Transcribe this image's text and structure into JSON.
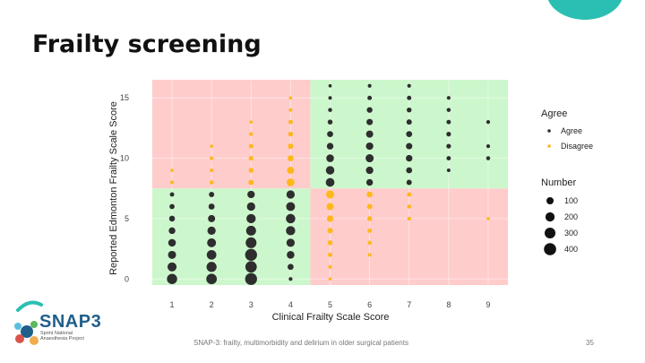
{
  "slide": {
    "title": "Frailty screening",
    "footer": "SNAP-3: frailty, multimorbidity and delirium in older surgical patients",
    "page_number": "35",
    "accent_color": "#2bbfb3",
    "logo": {
      "name": "SNAP3",
      "lines": [
        "Sprint National",
        "Anaesthesia Project"
      ]
    }
  },
  "chart_data": {
    "type": "scatter",
    "xlabel": "Clinical Frailty Scale Score",
    "ylabel": "Reported Edmonton Frailty Scale Score",
    "xlim": [
      0.5,
      9.5
    ],
    "ylim": [
      -0.5,
      16.5
    ],
    "xticks": [
      1,
      2,
      3,
      4,
      5,
      6,
      7,
      8,
      9
    ],
    "yticks": [
      0,
      5,
      10,
      15
    ],
    "grid": true,
    "legend_position": "right",
    "regions": [
      {
        "x": [
          0.5,
          4.5
        ],
        "y": [
          -0.5,
          7.5
        ],
        "agreement": "agree",
        "color": "#ccf7cc"
      },
      {
        "x": [
          0.5,
          4.5
        ],
        "y": [
          7.5,
          16.5
        ],
        "agreement": "disagree",
        "color": "#ffcccc"
      },
      {
        "x": [
          4.5,
          9.5
        ],
        "y": [
          -0.5,
          7.5
        ],
        "agreement": "disagree",
        "color": "#ffcccc"
      },
      {
        "x": [
          4.5,
          9.5
        ],
        "y": [
          7.5,
          16.5
        ],
        "agreement": "agree",
        "color": "#ccf7cc"
      }
    ],
    "color_legend": {
      "title": "Agree",
      "entries": [
        {
          "label": "Agree",
          "color": "#2e2e2e"
        },
        {
          "label": "Disagree",
          "color": "#ffb71a"
        }
      ]
    },
    "size_legend": {
      "title": "Number",
      "values": [
        100,
        200,
        300,
        400
      ]
    },
    "series": [
      {
        "name": "Agree",
        "color": "#2e2e2e",
        "points": [
          [
            1,
            0,
            260
          ],
          [
            1,
            1,
            190
          ],
          [
            1,
            2,
            140
          ],
          [
            1,
            3,
            120
          ],
          [
            1,
            4,
            80
          ],
          [
            1,
            5,
            55
          ],
          [
            1,
            6,
            35
          ],
          [
            1,
            7,
            20
          ],
          [
            2,
            0,
            280
          ],
          [
            2,
            1,
            250
          ],
          [
            2,
            2,
            220
          ],
          [
            2,
            3,
            180
          ],
          [
            2,
            4,
            150
          ],
          [
            2,
            5,
            100
          ],
          [
            2,
            6,
            60
          ],
          [
            2,
            7,
            40
          ],
          [
            3,
            0,
            380
          ],
          [
            3,
            1,
            340
          ],
          [
            3,
            2,
            380
          ],
          [
            3,
            3,
            300
          ],
          [
            3,
            4,
            240
          ],
          [
            3,
            5,
            200
          ],
          [
            3,
            6,
            150
          ],
          [
            3,
            7,
            110
          ],
          [
            4,
            0,
            10
          ],
          [
            4,
            1,
            60
          ],
          [
            4,
            2,
            120
          ],
          [
            4,
            3,
            150
          ],
          [
            4,
            4,
            200
          ],
          [
            4,
            5,
            210
          ],
          [
            4,
            6,
            180
          ],
          [
            4,
            7,
            150
          ],
          [
            5,
            8,
            170
          ],
          [
            5,
            9,
            160
          ],
          [
            5,
            10,
            120
          ],
          [
            5,
            11,
            80
          ],
          [
            5,
            12,
            60
          ],
          [
            5,
            13,
            30
          ],
          [
            5,
            14,
            15
          ],
          [
            5,
            15,
            8
          ],
          [
            5,
            16,
            5
          ],
          [
            6,
            8,
            80
          ],
          [
            6,
            9,
            110
          ],
          [
            6,
            10,
            140
          ],
          [
            6,
            11,
            110
          ],
          [
            6,
            12,
            100
          ],
          [
            6,
            13,
            70
          ],
          [
            6,
            14,
            50
          ],
          [
            6,
            15,
            20
          ],
          [
            6,
            16,
            10
          ],
          [
            7,
            8,
            40
          ],
          [
            7,
            9,
            60
          ],
          [
            7,
            10,
            80
          ],
          [
            7,
            11,
            70
          ],
          [
            7,
            12,
            60
          ],
          [
            7,
            13,
            40
          ],
          [
            7,
            14,
            30
          ],
          [
            7,
            15,
            20
          ],
          [
            7,
            16,
            10
          ],
          [
            8,
            9,
            8
          ],
          [
            8,
            10,
            20
          ],
          [
            8,
            11,
            25
          ],
          [
            8,
            12,
            25
          ],
          [
            8,
            13,
            20
          ],
          [
            8,
            14,
            15
          ],
          [
            8,
            15,
            10
          ],
          [
            9,
            10,
            15
          ],
          [
            9,
            11,
            10
          ],
          [
            9,
            13,
            10
          ]
        ]
      },
      {
        "name": "Disagree",
        "color": "#ffb71a",
        "points": [
          [
            1,
            8,
            10
          ],
          [
            1,
            9,
            5
          ],
          [
            2,
            8,
            15
          ],
          [
            2,
            9,
            10
          ],
          [
            2,
            10,
            10
          ],
          [
            2,
            11,
            5
          ],
          [
            3,
            8,
            40
          ],
          [
            3,
            9,
            30
          ],
          [
            3,
            10,
            25
          ],
          [
            3,
            11,
            20
          ],
          [
            3,
            12,
            10
          ],
          [
            3,
            13,
            5
          ],
          [
            4,
            8,
            130
          ],
          [
            4,
            9,
            100
          ],
          [
            4,
            10,
            60
          ],
          [
            4,
            11,
            40
          ],
          [
            4,
            12,
            30
          ],
          [
            4,
            13,
            20
          ],
          [
            4,
            14,
            10
          ],
          [
            4,
            15,
            5
          ],
          [
            5,
            0,
            5
          ],
          [
            5,
            1,
            10
          ],
          [
            5,
            2,
            20
          ],
          [
            5,
            3,
            30
          ],
          [
            5,
            4,
            45
          ],
          [
            5,
            5,
            75
          ],
          [
            5,
            6,
            100
          ],
          [
            5,
            7,
            140
          ],
          [
            6,
            2,
            10
          ],
          [
            6,
            3,
            15
          ],
          [
            6,
            4,
            20
          ],
          [
            6,
            5,
            30
          ],
          [
            6,
            6,
            40
          ],
          [
            6,
            7,
            55
          ],
          [
            7,
            5,
            12
          ],
          [
            7,
            6,
            15
          ],
          [
            7,
            7,
            20
          ],
          [
            9,
            5,
            5
          ]
        ]
      }
    ]
  }
}
